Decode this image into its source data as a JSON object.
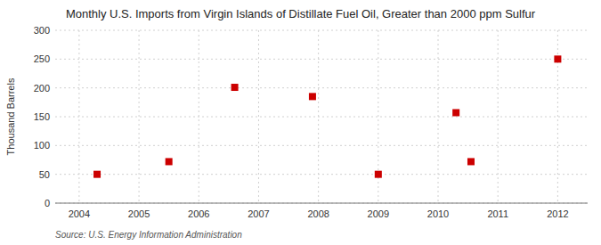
{
  "chart_data": {
    "type": "scatter",
    "title": "Monthly U.S. Imports from Virgin Islands of Distillate Fuel Oil, Greater than 2000 ppm Sulfur",
    "y_label": "Thousand Barrels",
    "source": "Source: U.S. Energy Information Administration",
    "x": [
      2004.3,
      2005.5,
      2006.6,
      2007.9,
      2009.0,
      2010.3,
      2010.55,
      2012.0
    ],
    "values": [
      50,
      72,
      201,
      185,
      50,
      157,
      72,
      250
    ],
    "color": "#cc0000",
    "marker": "square",
    "xlim": [
      2003.6,
      2012.5
    ],
    "ylim": [
      0,
      300
    ],
    "xticks": [
      2004,
      2005,
      2006,
      2007,
      2008,
      2009,
      2010,
      2011,
      2012
    ],
    "yticks": [
      0,
      50,
      100,
      150,
      200,
      250,
      300
    ],
    "grid": true
  }
}
